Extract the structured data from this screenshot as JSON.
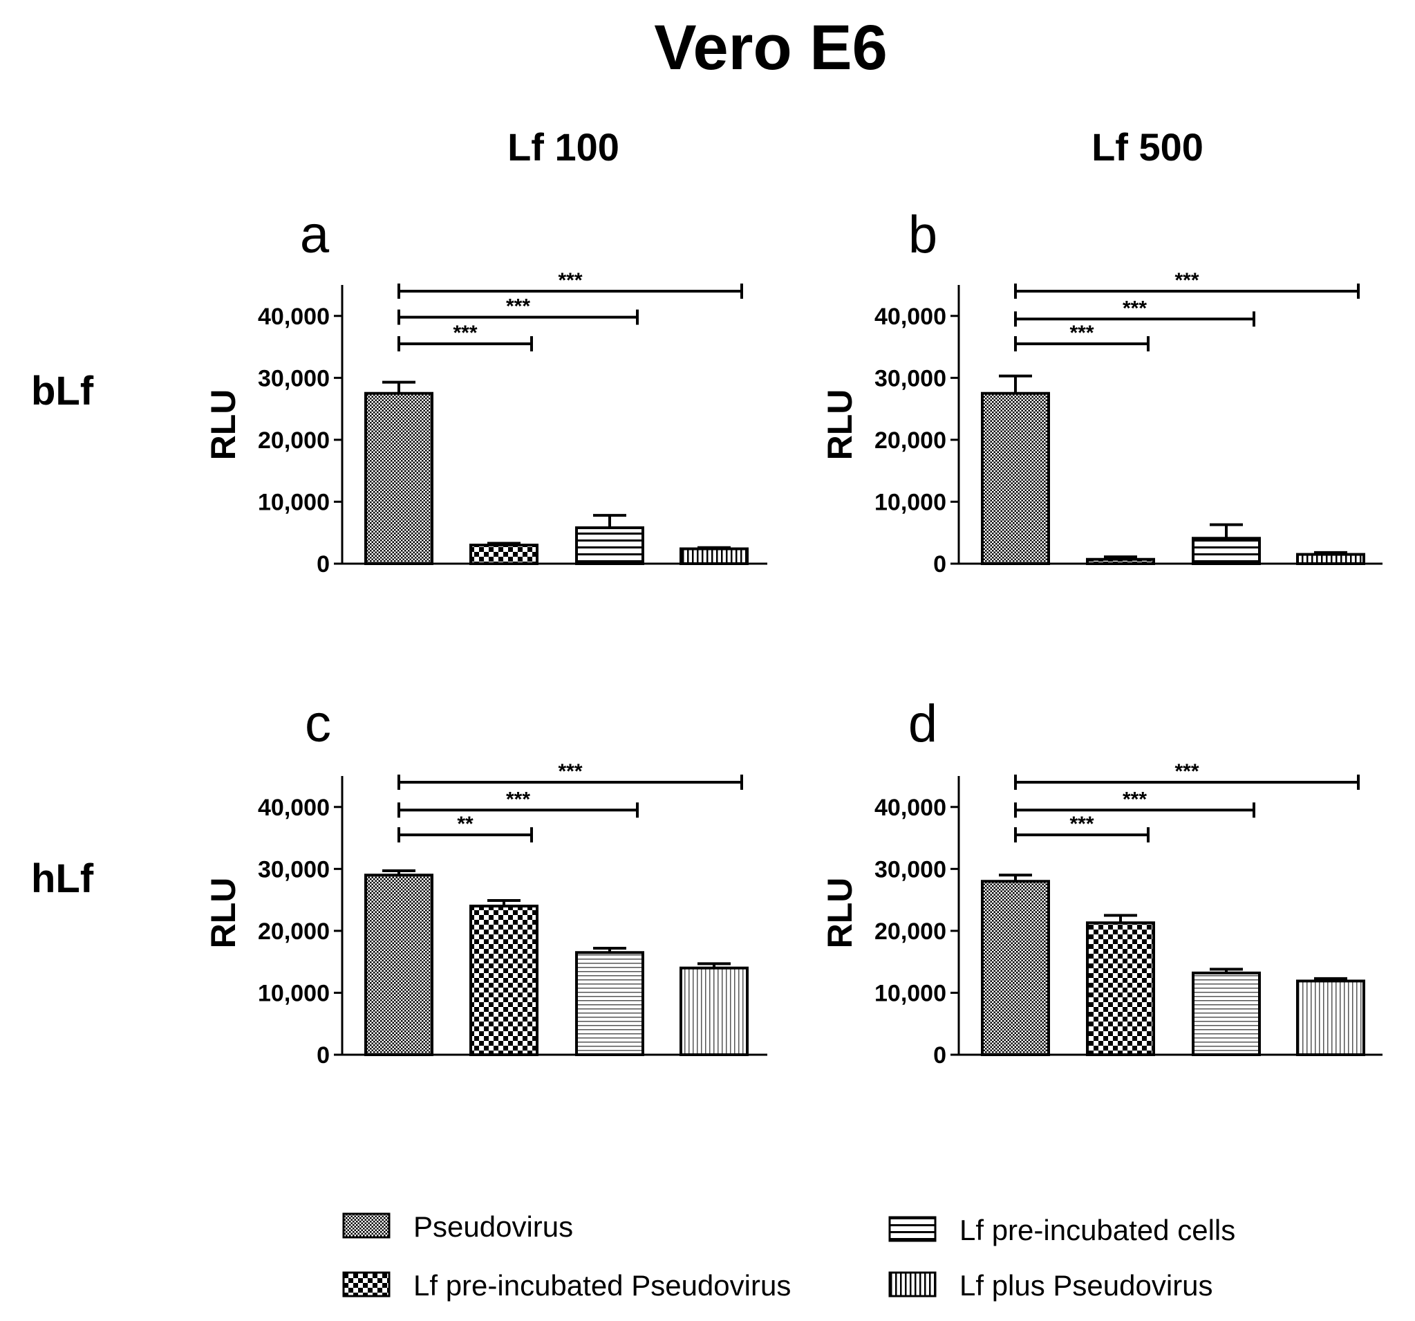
{
  "figure": {
    "title": "Vero E6",
    "col_headers": [
      "Lf 100",
      "Lf 500"
    ],
    "row_headers": [
      "bLf",
      "hLf"
    ]
  },
  "legend": {
    "items": [
      {
        "label": "Pseudovirus",
        "pattern": "fine"
      },
      {
        "label": "Lf pre-incubated Pseudovirus",
        "pattern": "checker"
      },
      {
        "label": "Lf pre-incubated cells",
        "pattern": "hlines"
      },
      {
        "label": "Lf plus Pseudovirus",
        "pattern": "vlines"
      }
    ]
  },
  "colors": {
    "ink": "#000000",
    "background": "#ffffff"
  },
  "chart_data": [
    {
      "type": "bar",
      "panel": "a",
      "title": "",
      "xlabel": "",
      "ylabel": "RLU",
      "ylim": [
        0,
        45000
      ],
      "yticks": [
        0,
        10000,
        20000,
        30000,
        40000
      ],
      "ytick_labels": [
        "0",
        "10,000",
        "20,000",
        "30,000",
        "40,000"
      ],
      "categories": [
        "Pseudovirus",
        "Lf pre-incubated Pseudovirus",
        "Lf pre-incubated cells",
        "Lf plus Pseudovirus"
      ],
      "patterns_mode": "bLf",
      "values": [
        27500,
        3000,
        5800,
        2400
      ],
      "errors": [
        1800,
        300,
        2000,
        200
      ],
      "significance": [
        {
          "from": 0,
          "to": 1,
          "label": "***",
          "y": 35500
        },
        {
          "from": 0,
          "to": 2,
          "label": "***",
          "y": 39800
        },
        {
          "from": 0,
          "to": 3,
          "label": "***",
          "y": 44000
        }
      ]
    },
    {
      "type": "bar",
      "panel": "b",
      "title": "",
      "xlabel": "",
      "ylabel": "RLU",
      "ylim": [
        0,
        45000
      ],
      "yticks": [
        0,
        10000,
        20000,
        30000,
        40000
      ],
      "ytick_labels": [
        "0",
        "10,000",
        "20,000",
        "30,000",
        "40,000"
      ],
      "categories": [
        "Pseudovirus",
        "Lf pre-incubated Pseudovirus",
        "Lf pre-incubated cells",
        "Lf plus Pseudovirus"
      ],
      "patterns_mode": "bLf",
      "values": [
        27500,
        700,
        4100,
        1500
      ],
      "errors": [
        2800,
        400,
        2200,
        300
      ],
      "significance": [
        {
          "from": 0,
          "to": 1,
          "label": "***",
          "y": 35500
        },
        {
          "from": 0,
          "to": 2,
          "label": "***",
          "y": 39500
        },
        {
          "from": 0,
          "to": 3,
          "label": "***",
          "y": 44000
        }
      ]
    },
    {
      "type": "bar",
      "panel": "c",
      "title": "",
      "xlabel": "",
      "ylabel": "RLU",
      "ylim": [
        0,
        45000
      ],
      "yticks": [
        0,
        10000,
        20000,
        30000,
        40000
      ],
      "ytick_labels": [
        "0",
        "10,000",
        "20,000",
        "30,000",
        "40,000"
      ],
      "categories": [
        "Pseudovirus",
        "Lf pre-incubated Pseudovirus",
        "Lf pre-incubated cells",
        "Lf plus Pseudovirus"
      ],
      "patterns_mode": "hLf",
      "values": [
        29000,
        24000,
        16500,
        14000
      ],
      "errors": [
        700,
        900,
        700,
        700
      ],
      "significance": [
        {
          "from": 0,
          "to": 1,
          "label": "**",
          "y": 35500
        },
        {
          "from": 0,
          "to": 2,
          "label": "***",
          "y": 39500
        },
        {
          "from": 0,
          "to": 3,
          "label": "***",
          "y": 44000
        }
      ]
    },
    {
      "type": "bar",
      "panel": "d",
      "title": "",
      "xlabel": "",
      "ylabel": "RLU",
      "ylim": [
        0,
        45000
      ],
      "yticks": [
        0,
        10000,
        20000,
        30000,
        40000
      ],
      "ytick_labels": [
        "0",
        "10,000",
        "20,000",
        "30,000",
        "40,000"
      ],
      "categories": [
        "Pseudovirus",
        "Lf pre-incubated Pseudovirus",
        "Lf pre-incubated cells",
        "Lf plus Pseudovirus"
      ],
      "patterns_mode": "hLf",
      "values": [
        28000,
        21300,
        13200,
        11900
      ],
      "errors": [
        1000,
        1200,
        600,
        400
      ],
      "significance": [
        {
          "from": 0,
          "to": 1,
          "label": "***",
          "y": 35500
        },
        {
          "from": 0,
          "to": 2,
          "label": "***",
          "y": 39500
        },
        {
          "from": 0,
          "to": 3,
          "label": "***",
          "y": 44000
        }
      ]
    }
  ]
}
